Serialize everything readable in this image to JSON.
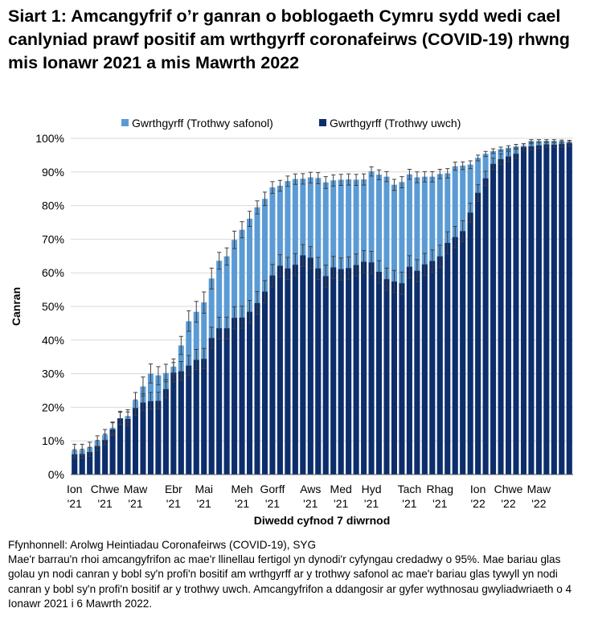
{
  "title": "Siart 1: Amcangyfrif o’r ganran o boblogaeth Cymru sydd wedi cael canlyniad prawf positif am wrthgyrff coronafeirws (COVID-19) rhwng mis Ionawr 2021 a mis Mawrth 2022",
  "footer": {
    "source": "Ffynhonnell: Arolwg Heintiadau Coronafeirws (COVID-19), SYG",
    "note": "Mae'r barrau'n rhoi amcangyfrifon ac mae'r llinellau fertigol yn dynodi'r cyfyngau credadwy o 95%. Mae bariau glas golau yn nodi canran y bobl sy'n profi'n bositif am wrthgyrff ar y trothwy safonol ac mae'r bariau glas tywyll yn nodi canran y bobl sy'n profi'n bositif ar y trothwy uwch. Amcangyfrifon a ddangosir ar gyfer wythnosau gwyliadwriaeth o 4 Ionawr 2021 i 6 Mawrth 2022."
  },
  "colors": {
    "standard": "#5b9bd5",
    "higher": "#0d2d6b",
    "error": "#404040",
    "grid": "#d9d9d9"
  },
  "chart_data": {
    "type": "bar",
    "layout": "overlapping bars",
    "xlabel": "Diwedd cyfnod 7 diwrnod",
    "ylabel": "Canran",
    "ylim": [
      0,
      100
    ],
    "yticks": [
      "0%",
      "10%",
      "20%",
      "30%",
      "40%",
      "50%",
      "60%",
      "70%",
      "80%",
      "90%",
      "100%"
    ],
    "legend_position": "top",
    "x_tick_labels": [
      {
        "label": "Ion",
        "year": "'21",
        "index": 0
      },
      {
        "label": "Chwe",
        "year": "'21",
        "index": 4
      },
      {
        "label": "Maw",
        "year": "'21",
        "index": 8
      },
      {
        "label": "Ebr",
        "year": "'21",
        "index": 13
      },
      {
        "label": "Mai",
        "year": "'21",
        "index": 17
      },
      {
        "label": "Meh",
        "year": "'21",
        "index": 22
      },
      {
        "label": "Gorff",
        "year": "'21",
        "index": 26
      },
      {
        "label": "Aws",
        "year": "'21",
        "index": 31
      },
      {
        "label": "Med",
        "year": "'21",
        "index": 35
      },
      {
        "label": "Hyd",
        "year": "'21",
        "index": 39
      },
      {
        "label": "Tach",
        "year": "'21",
        "index": 44
      },
      {
        "label": "Rhag",
        "year": "'21",
        "index": 48
      },
      {
        "label": "Ion",
        "year": "'22",
        "index": 53
      },
      {
        "label": "Chwe",
        "year": "'22",
        "index": 57
      },
      {
        "label": "Maw",
        "year": "'22",
        "index": 61
      }
    ],
    "series": [
      {
        "name": "Gwrthgyrff (Trothwy safonol)",
        "values": [
          7.2,
          7.3,
          8,
          10,
          11.8,
          13.9,
          16.7,
          17.4,
          22,
          26.2,
          30,
          29.5,
          30.2,
          32.1,
          38.4,
          45.6,
          48.4,
          51.2,
          58.3,
          63.6,
          64.9,
          69.8,
          72.8,
          76.1,
          79.5,
          82,
          85.4,
          85.9,
          87.3,
          87.9,
          88,
          88.4,
          88.2,
          86.9,
          87.5,
          87.7,
          87.8,
          87.7,
          87.8,
          90.2,
          89.2,
          88.6,
          86.2,
          87,
          89.3,
          88.4,
          88.6,
          88.6,
          89.4,
          89.6,
          91.7,
          91.9,
          92.2,
          94.2,
          95.4,
          96.2,
          96.8,
          97.2,
          97.6,
          97.8,
          99.2,
          99.2,
          99.2,
          99.2,
          99.1,
          99
        ],
        "ci_low": [
          5.5,
          5.7,
          6.4,
          8.3,
          10.2,
          12.2,
          14.9,
          15.5,
          19.6,
          23.4,
          27.2,
          26.7,
          27.6,
          29.8,
          35.7,
          42.6,
          45.3,
          48,
          55.2,
          61.1,
          62.3,
          67.2,
          70.4,
          73.8,
          77.5,
          80,
          83.6,
          84.3,
          85.7,
          86.3,
          86.4,
          86.7,
          86.5,
          85.1,
          85.8,
          86,
          86.1,
          86,
          86.1,
          88.8,
          87.7,
          87.1,
          84.5,
          85.3,
          87.8,
          86.8,
          87,
          87,
          88,
          88.2,
          90.5,
          90.7,
          91,
          93.3,
          94.6,
          95.5,
          96.2,
          96.6,
          97.1,
          97.3,
          98.8,
          98.8,
          98.8,
          98.8,
          98.6,
          98.6
        ],
        "ci_high": [
          9,
          9,
          9.6,
          11.5,
          13.4,
          15.6,
          18.5,
          19.3,
          24.4,
          29,
          32.9,
          32.1,
          32.8,
          34.4,
          41.1,
          48.7,
          51.5,
          54.3,
          61.4,
          66.1,
          67.4,
          72.4,
          75.2,
          78.3,
          81.4,
          84,
          87.1,
          87.5,
          88.8,
          89.4,
          89.5,
          89.9,
          89.8,
          88.6,
          89.1,
          89.3,
          89.4,
          89.3,
          89.4,
          91.5,
          90.6,
          90.1,
          87.8,
          88.6,
          90.8,
          90,
          90.1,
          90.1,
          90.8,
          91,
          92.9,
          93,
          93.3,
          95,
          96.1,
          96.9,
          97.4,
          97.8,
          98.2,
          98.4,
          99.6,
          99.6,
          99.6,
          99.6,
          99.5,
          99.4
        ]
      },
      {
        "name": "Gwrthgyrff (Trothwy uwch)",
        "values": [
          6,
          6.1,
          6.7,
          8.5,
          10.3,
          13.4,
          16.7,
          16.5,
          19.8,
          21.4,
          21.8,
          21.9,
          25.4,
          30.3,
          30.7,
          32.4,
          34.1,
          34.4,
          40.6,
          43.5,
          43.5,
          46.6,
          46.7,
          48.4,
          51,
          54.4,
          59.2,
          62.1,
          61.3,
          62.4,
          65.2,
          64.5,
          61.3,
          59,
          61.6,
          61.1,
          61.4,
          62.3,
          63.3,
          63.1,
          60.3,
          58.1,
          57.4,
          56.9,
          61.8,
          60.6,
          62.5,
          63.5,
          64.9,
          68.9,
          70.6,
          72.4,
          77.9,
          83.8,
          88.1,
          92.4,
          93.8,
          94.6,
          95.4,
          97.4,
          97.6,
          97.9,
          98.2,
          98.1,
          98.3,
          98.5
        ],
        "ci_low": [
          4.8,
          4.9,
          5.4,
          7.1,
          8.8,
          11.6,
          14.8,
          14.6,
          17.6,
          19,
          19.4,
          19.5,
          22.8,
          27.5,
          28,
          29.6,
          31.2,
          31.5,
          37.5,
          40.3,
          40.3,
          43.3,
          43.5,
          45.1,
          47.7,
          51.1,
          55.9,
          58.8,
          58,
          59.1,
          61.9,
          61.2,
          58,
          55.7,
          58.3,
          57.8,
          58.1,
          59,
          60,
          59.8,
          57,
          54.8,
          54.1,
          53.6,
          58.5,
          57.3,
          59.2,
          60.2,
          61.6,
          65.6,
          67.5,
          69.3,
          75,
          81.3,
          86,
          90.7,
          92.2,
          93.1,
          94,
          96.4,
          96.6,
          97,
          97.4,
          97.3,
          97.4,
          97.7
        ],
        "ci_high": [
          7.4,
          7.5,
          8.1,
          10.1,
          12,
          15.4,
          18.8,
          18.6,
          22.2,
          24,
          24.4,
          24.5,
          28.2,
          33.3,
          33.6,
          35.4,
          37.2,
          37.5,
          43.8,
          46.8,
          46.8,
          49.9,
          50.1,
          51.8,
          54.4,
          57.7,
          62.5,
          65.4,
          64.6,
          65.7,
          68.4,
          67.8,
          64.6,
          62.3,
          64.9,
          64.4,
          64.7,
          65.6,
          66.6,
          66.4,
          63.6,
          61.4,
          60.7,
          60.2,
          65.1,
          63.9,
          65.8,
          66.8,
          68.2,
          72.2,
          73.8,
          75.5,
          80.7,
          86.2,
          90.2,
          94.1,
          95.4,
          96.1,
          96.8,
          98.4,
          98.5,
          98.8,
          99,
          98.9,
          99.1,
          99.3
        ]
      }
    ]
  }
}
